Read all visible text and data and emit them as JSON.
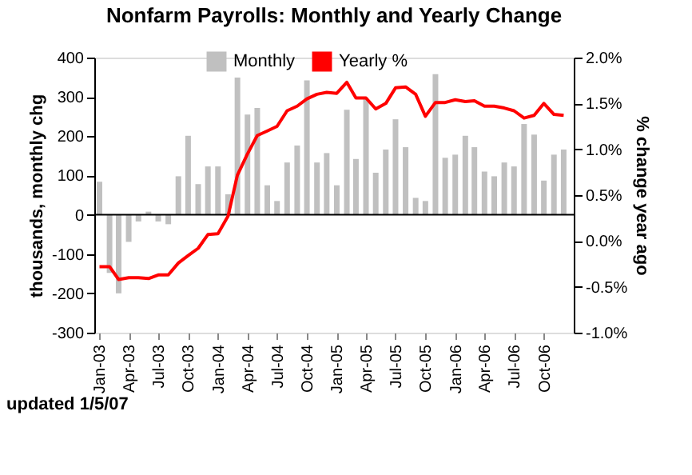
{
  "chart_data": {
    "type": "bar",
    "title": "Nonfarm Payrolls: Monthly and Yearly Change",
    "ylabel": "thousands, monthly chg",
    "y2label": "% change year ago",
    "annotations": [
      "updated 1/5/07"
    ],
    "x": [
      "2003-01",
      "2003-02",
      "2003-03",
      "2003-04",
      "2003-05",
      "2003-06",
      "2003-07",
      "2003-08",
      "2003-09",
      "2003-10",
      "2003-11",
      "2003-12",
      "2004-01",
      "2004-02",
      "2004-03",
      "2004-04",
      "2004-05",
      "2004-06",
      "2004-07",
      "2004-08",
      "2004-09",
      "2004-10",
      "2004-11",
      "2004-12",
      "2005-01",
      "2005-02",
      "2005-03",
      "2005-04",
      "2005-05",
      "2005-06",
      "2005-07",
      "2005-08",
      "2005-09",
      "2005-10",
      "2005-11",
      "2005-12",
      "2006-01",
      "2006-02",
      "2006-03",
      "2006-04",
      "2006-05",
      "2006-06",
      "2006-07",
      "2006-08",
      "2006-09",
      "2006-10",
      "2006-11",
      "2006-12"
    ],
    "series": [
      {
        "name": "Monthly",
        "color": "#c0c0c0",
        "values": [
          84,
          -148,
          -200,
          -69,
          -17,
          8,
          -17,
          -24,
          98,
          201,
          78,
          123,
          123,
          52,
          349,
          255,
          272,
          75,
          35,
          133,
          176,
          342,
          133,
          157,
          75,
          267,
          142,
          294,
          107,
          166,
          243,
          172,
          43,
          35,
          358,
          145,
          153,
          201,
          172,
          110,
          98,
          133,
          123,
          231,
          204,
          87,
          153,
          166
        ]
      },
      {
        "name": "Yearly %",
        "type": "line",
        "axis": "y2",
        "color": "#ff0000",
        "values": [
          -0.28,
          -0.28,
          -0.42,
          -0.4,
          -0.4,
          -0.41,
          -0.37,
          -0.37,
          -0.24,
          -0.16,
          -0.08,
          0.07,
          0.08,
          0.27,
          0.72,
          0.95,
          1.15,
          1.2,
          1.25,
          1.42,
          1.47,
          1.55,
          1.6,
          1.62,
          1.61,
          1.73,
          1.56,
          1.56,
          1.44,
          1.5,
          1.67,
          1.68,
          1.6,
          1.36,
          1.51,
          1.51,
          1.54,
          1.52,
          1.53,
          1.47,
          1.47,
          1.45,
          1.42,
          1.34,
          1.37,
          1.5,
          1.38,
          1.37
        ]
      }
    ],
    "xlim": [
      "2002-12-16",
      "2007-01-01"
    ],
    "xticks": [
      {
        "value": "2003-01",
        "label": "Jan-03"
      },
      {
        "value": "2003-04",
        "label": "Apr-03"
      },
      {
        "value": "2003-07",
        "label": "Jul-03"
      },
      {
        "value": "2003-10",
        "label": "Oct-03"
      },
      {
        "value": "2004-01",
        "label": "Jan-04"
      },
      {
        "value": "2004-04",
        "label": "Apr-04"
      },
      {
        "value": "2004-07",
        "label": "Jul-04"
      },
      {
        "value": "2004-10",
        "label": "Oct-04"
      },
      {
        "value": "2005-01",
        "label": "Jan-05"
      },
      {
        "value": "2005-04",
        "label": "Apr-05"
      },
      {
        "value": "2005-07",
        "label": "Jul-05"
      },
      {
        "value": "2005-10",
        "label": "Oct-05"
      },
      {
        "value": "2006-01",
        "label": "Jan-06"
      },
      {
        "value": "2006-04",
        "label": "Apr-06"
      },
      {
        "value": "2006-07",
        "label": "Jul-06"
      },
      {
        "value": "2006-10",
        "label": "Oct-06"
      }
    ],
    "ylim": [
      -300,
      400
    ],
    "yticks": [
      -300,
      -200,
      -100,
      0,
      100,
      200,
      300,
      400
    ],
    "y2lim": [
      -1.0,
      2.0
    ],
    "y2ticks": [
      {
        "value": -1.0,
        "label": "-1.0%"
      },
      {
        "value": -0.5,
        "label": "-0.5%"
      },
      {
        "value": 0.0,
        "label": "0.0%"
      },
      {
        "value": 0.5,
        "label": "0.5%"
      },
      {
        "value": 1.0,
        "label": "1.0%"
      },
      {
        "value": 1.5,
        "label": "1.5%"
      },
      {
        "value": 2.0,
        "label": "2.0%"
      }
    ],
    "ref_lines": [
      {
        "axis": "y",
        "value": 0,
        "color": "#000000"
      }
    ],
    "grid": false,
    "legend": "top"
  }
}
